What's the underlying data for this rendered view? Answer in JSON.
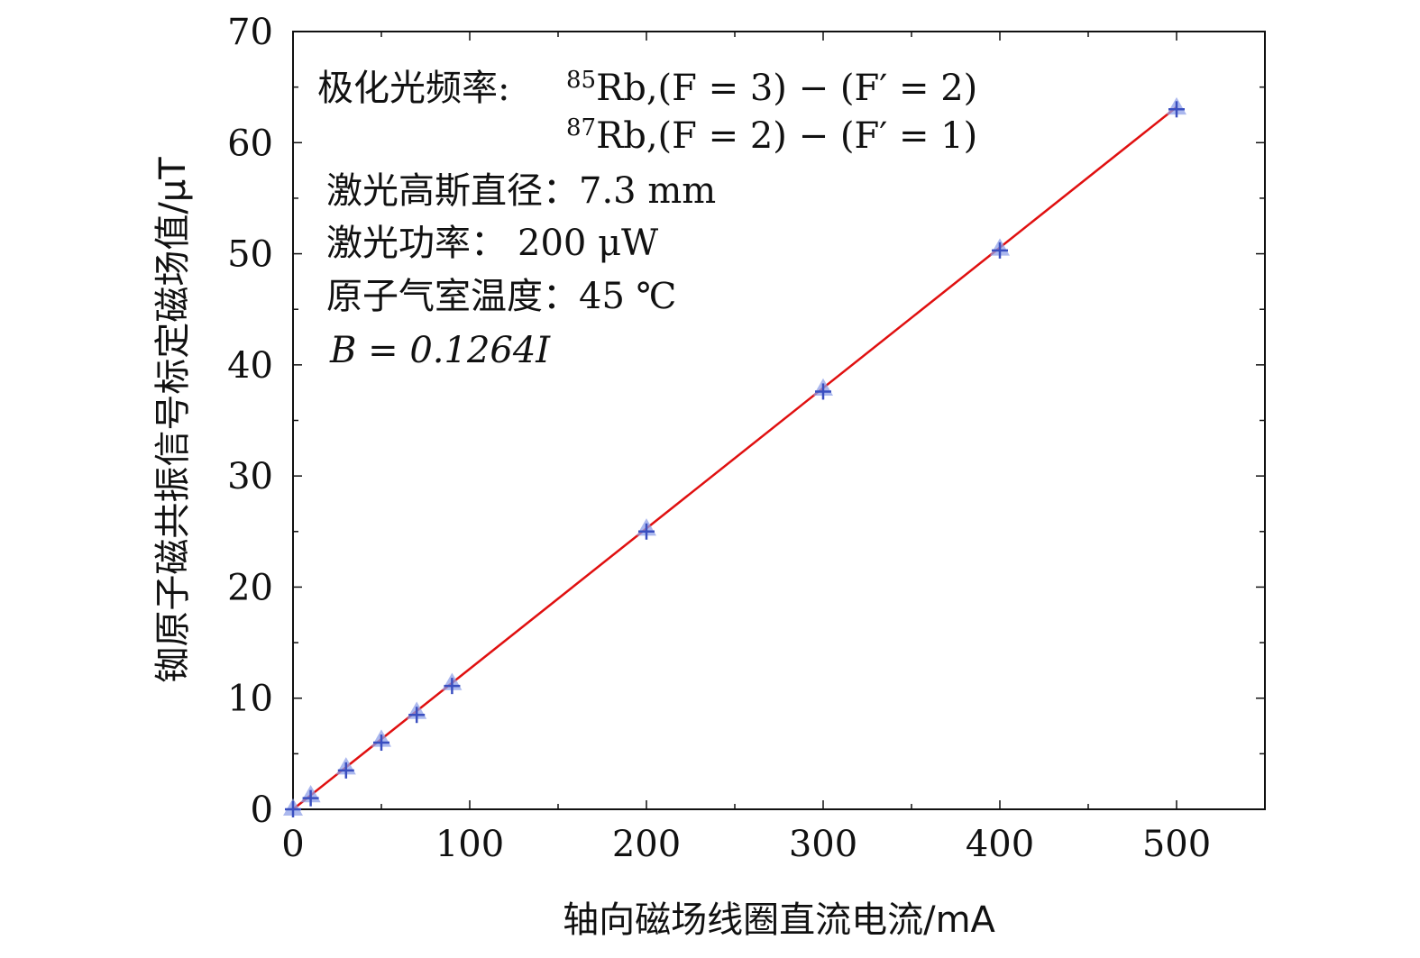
{
  "chart_data": {
    "type": "scatter",
    "xlabel": "轴向磁场线圈直流电流/mA",
    "ylabel": "铷原子磁共振信号标定磁场值/μT",
    "xlim": [
      0,
      550
    ],
    "ylim": [
      0,
      70
    ],
    "x_ticks": [
      0,
      100,
      200,
      300,
      400,
      500
    ],
    "y_ticks": [
      0,
      10,
      20,
      30,
      40,
      50,
      60,
      70
    ],
    "x_tick_labels": [
      "0",
      "100",
      "200",
      "300",
      "400",
      "500"
    ],
    "y_tick_labels": [
      "0",
      "10",
      "20",
      "30",
      "40",
      "50",
      "60",
      "70"
    ],
    "grid": false,
    "series": [
      {
        "marker": "triangle-up",
        "color": "#8fa0e8",
        "x": [
          0,
          10,
          30,
          50,
          70,
          90,
          200,
          300,
          400,
          500
        ],
        "y": [
          0.1,
          1.3,
          3.8,
          6.3,
          8.8,
          11.4,
          25.3,
          37.9,
          50.5,
          63.2
        ]
      },
      {
        "marker": "plus",
        "color": "#3a4fc0",
        "x": [
          0,
          10,
          30,
          50,
          70,
          90,
          200,
          300,
          400,
          500
        ],
        "y": [
          0.0,
          1.0,
          3.5,
          6.0,
          8.5,
          11.1,
          25.0,
          37.6,
          50.3,
          63.0
        ]
      }
    ],
    "fit_line": {
      "color": "#e01010",
      "slope": 0.1264,
      "intercept": 0,
      "x_range": [
        0,
        500
      ]
    },
    "annotation": {
      "pump_label": "极化光频率:",
      "pump_line1_sup": "85",
      "pump_line1_rest": "Rb,(F = 3) − (F′ = 2)",
      "pump_line2_sup": "87",
      "pump_line2_rest": "Rb,(F = 2) − (F′ = 1)",
      "beam_diameter": "激光高斯直径：7.3 mm",
      "laser_power_label": "激光功率：",
      "laser_power_value": "200 μW",
      "cell_temperature": "原子气室温度：45 ℃",
      "fit_equation": "B = 0.1264I"
    }
  }
}
